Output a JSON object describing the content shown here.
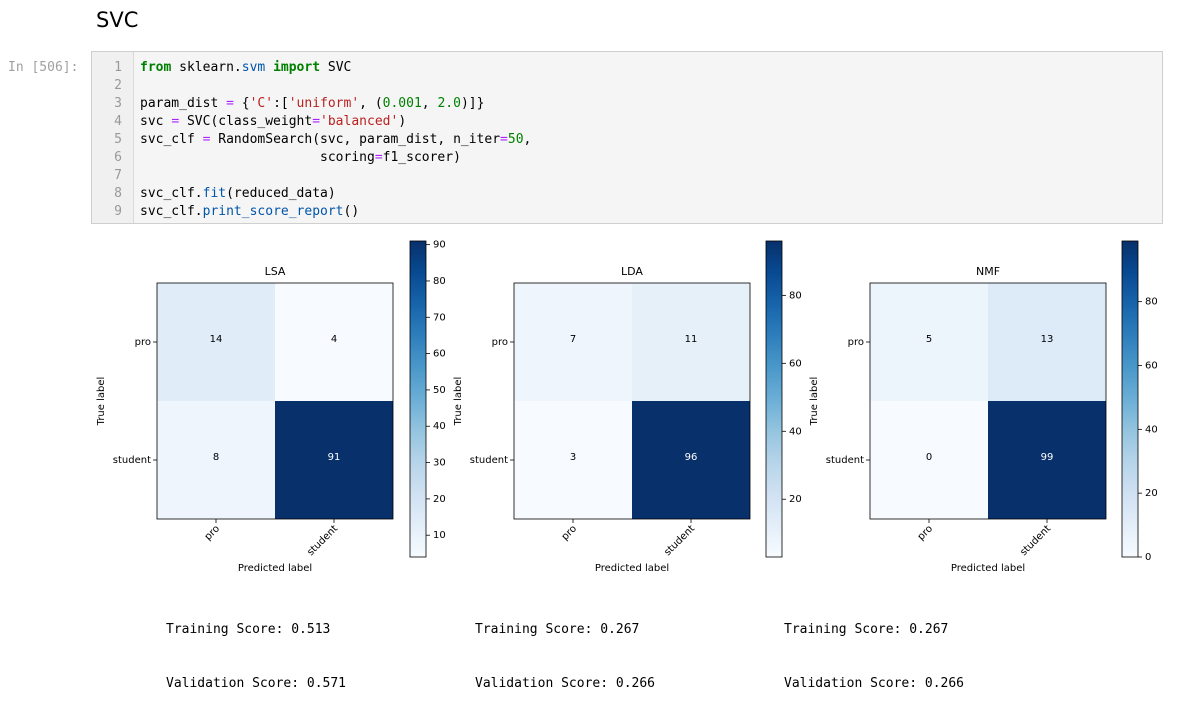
{
  "section": {
    "title": "SVC"
  },
  "cell": {
    "prompt": "In [506]:",
    "code": [
      "from sklearn.svm import SVC",
      "",
      "param_dist = {'C':['uniform', (0.001, 2.0)]}",
      "svc = SVC(class_weight='balanced')",
      "svc_clf = RandomSearch(svc, param_dist, n_iter=50,",
      "                       scoring=f1_scorer)",
      "",
      "svc_clf.fit(reduced_data)",
      "svc_clf.print_score_report()"
    ]
  },
  "chart_data": [
    {
      "type": "heatmap",
      "title": "LSA",
      "xlabel": "Predicted label",
      "ylabel": "True label",
      "x_categories": [
        "pro",
        "student"
      ],
      "y_categories": [
        "pro",
        "student"
      ],
      "values": [
        [
          14,
          4
        ],
        [
          8,
          91
        ]
      ],
      "colorbar_ticks": [
        10,
        20,
        30,
        40,
        50,
        60,
        70,
        80,
        90
      ],
      "colorbar_range": [
        4,
        91
      ],
      "colormap": "Blues"
    },
    {
      "type": "heatmap",
      "title": "LDA",
      "xlabel": "Predicted label",
      "ylabel": "True label",
      "x_categories": [
        "pro",
        "student"
      ],
      "y_categories": [
        "pro",
        "student"
      ],
      "values": [
        [
          7,
          11
        ],
        [
          3,
          96
        ]
      ],
      "colorbar_ticks": [
        20,
        40,
        60,
        80
      ],
      "colorbar_range": [
        3,
        96
      ],
      "colormap": "Blues"
    },
    {
      "type": "heatmap",
      "title": "NMF",
      "xlabel": "Predicted label",
      "ylabel": "True label",
      "x_categories": [
        "pro",
        "student"
      ],
      "y_categories": [
        "pro",
        "student"
      ],
      "values": [
        [
          5,
          13
        ],
        [
          0,
          99
        ]
      ],
      "colorbar_ticks": [
        0,
        20,
        40,
        60,
        80
      ],
      "colorbar_range": [
        0,
        99
      ],
      "colormap": "Blues"
    }
  ],
  "scores": [
    {
      "training": "Training Score: 0.513",
      "validation": "Validation Score: 0.571"
    },
    {
      "training": "Training Score: 0.267",
      "validation": "Validation Score: 0.266"
    },
    {
      "training": "Training Score: 0.267",
      "validation": "Validation Score: 0.266"
    }
  ]
}
